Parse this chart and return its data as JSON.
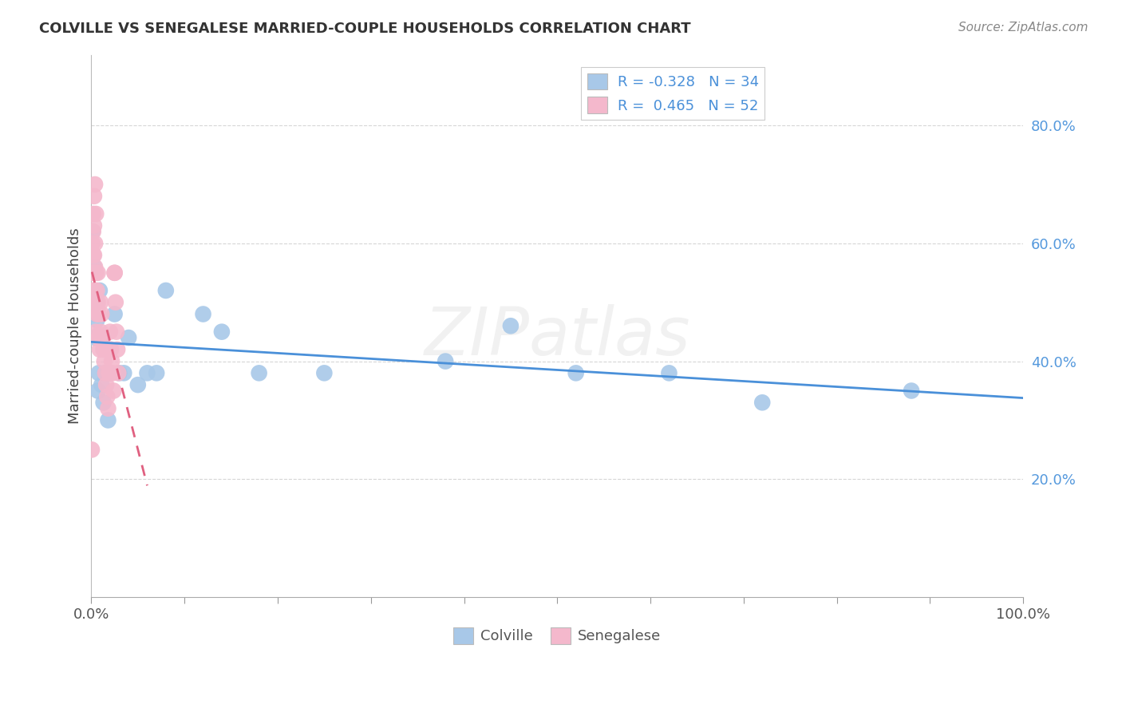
{
  "title": "COLVILLE VS SENEGALESE MARRIED-COUPLE HOUSEHOLDS CORRELATION CHART",
  "source": "Source: ZipAtlas.com",
  "ylabel": "Married-couple Households",
  "colville_R": "-0.328",
  "colville_N": "34",
  "senegalese_R": "0.465",
  "senegalese_N": "52",
  "colville_color": "#a8c8e8",
  "senegalese_color": "#f4b8cc",
  "colville_line_color": "#4a90d9",
  "senegalese_line_color": "#e06080",
  "legend_R_color": "#4a90d9",
  "ytick_color": "#5599dd",
  "grid_color": "#cccccc",
  "colville_points_x": [
    0.001,
    0.002,
    0.003,
    0.004,
    0.005,
    0.006,
    0.007,
    0.008,
    0.009,
    0.01,
    0.011,
    0.012,
    0.013,
    0.015,
    0.018,
    0.02,
    0.025,
    0.03,
    0.035,
    0.04,
    0.05,
    0.06,
    0.07,
    0.08,
    0.12,
    0.14,
    0.18,
    0.25,
    0.38,
    0.45,
    0.52,
    0.62,
    0.72,
    0.88
  ],
  "colville_points_y": [
    0.62,
    0.48,
    0.56,
    0.44,
    0.5,
    0.47,
    0.35,
    0.38,
    0.52,
    0.44,
    0.36,
    0.44,
    0.33,
    0.38,
    0.3,
    0.38,
    0.48,
    0.38,
    0.38,
    0.44,
    0.36,
    0.38,
    0.38,
    0.52,
    0.48,
    0.45,
    0.38,
    0.38,
    0.4,
    0.46,
    0.38,
    0.38,
    0.33,
    0.35
  ],
  "senegalese_points_x": [
    0.0005,
    0.001,
    0.001,
    0.001,
    0.001,
    0.002,
    0.002,
    0.002,
    0.002,
    0.002,
    0.003,
    0.003,
    0.003,
    0.003,
    0.004,
    0.004,
    0.004,
    0.005,
    0.005,
    0.005,
    0.006,
    0.006,
    0.007,
    0.007,
    0.008,
    0.008,
    0.009,
    0.01,
    0.01,
    0.011,
    0.012,
    0.013,
    0.014,
    0.015,
    0.016,
    0.017,
    0.018,
    0.019,
    0.02,
    0.021,
    0.022,
    0.023,
    0.024,
    0.025,
    0.026,
    0.027,
    0.028,
    0.029,
    0.003,
    0.004,
    0.005,
    0.025
  ],
  "senegalese_points_y": [
    0.25,
    0.55,
    0.6,
    0.58,
    0.52,
    0.65,
    0.62,
    0.58,
    0.55,
    0.52,
    0.63,
    0.58,
    0.55,
    0.5,
    0.6,
    0.56,
    0.52,
    0.55,
    0.5,
    0.45,
    0.52,
    0.48,
    0.55,
    0.5,
    0.48,
    0.44,
    0.42,
    0.5,
    0.45,
    0.48,
    0.44,
    0.42,
    0.4,
    0.38,
    0.36,
    0.34,
    0.32,
    0.38,
    0.45,
    0.42,
    0.4,
    0.38,
    0.35,
    0.55,
    0.5,
    0.45,
    0.42,
    0.38,
    0.68,
    0.7,
    0.65,
    0.55
  ],
  "xlim": [
    0.0,
    1.0
  ],
  "ylim": [
    0.0,
    0.92
  ],
  "yticks": [
    0.2,
    0.4,
    0.6,
    0.8
  ],
  "ytick_labels": [
    "20.0%",
    "40.0%",
    "60.0%",
    "80.0%"
  ],
  "xtick_positions": [
    0.0,
    0.1,
    0.2,
    0.3,
    0.4,
    0.5,
    0.6,
    0.7,
    0.8,
    0.9,
    1.0
  ],
  "watermark": "ZIPatlas",
  "background_color": "#ffffff"
}
